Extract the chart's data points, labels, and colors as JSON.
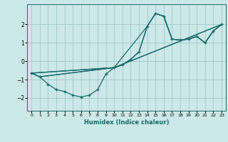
{
  "xlabel": "Humidex (Indice chaleur)",
  "xlim": [
    -0.5,
    23.5
  ],
  "ylim": [
    -2.7,
    3.1
  ],
  "xticks": [
    0,
    1,
    2,
    3,
    4,
    5,
    6,
    7,
    8,
    9,
    10,
    11,
    12,
    13,
    14,
    15,
    16,
    17,
    18,
    19,
    20,
    21,
    22,
    23
  ],
  "yticks": [
    -2,
    -1,
    0,
    1,
    2
  ],
  "bg_color": "#cce8e8",
  "line_color": "#1a6b6b",
  "grid_color": "#a0c8c8",
  "curves": [
    {
      "x": [
        0,
        1,
        2,
        3,
        4,
        5,
        6,
        7,
        8,
        9,
        10,
        11,
        12,
        13,
        14,
        15,
        16,
        17,
        18,
        19,
        20,
        21,
        22,
        23
      ],
      "y": [
        -0.65,
        -0.85,
        -1.25,
        -1.55,
        -1.65,
        -1.85,
        -1.95,
        -1.85,
        -1.55,
        -0.7,
        -0.35,
        -0.2,
        0.1,
        0.5,
        1.9,
        2.6,
        2.45,
        1.2,
        1.15,
        1.2,
        1.35,
        1.0,
        1.65,
        2.0
      ],
      "marker": "+",
      "ms": 3.5,
      "lw": 0.9
    },
    {
      "x": [
        0,
        1,
        10,
        23
      ],
      "y": [
        -0.65,
        -0.85,
        -0.35,
        2.0
      ],
      "marker": null,
      "ms": 0,
      "lw": 0.9
    },
    {
      "x": [
        0,
        10,
        23
      ],
      "y": [
        -0.65,
        -0.35,
        2.0
      ],
      "marker": null,
      "ms": 0,
      "lw": 0.9
    },
    {
      "x": [
        0,
        10,
        11,
        12,
        13,
        14,
        15,
        16,
        17,
        18,
        19,
        20,
        21,
        22,
        23
      ],
      "y": [
        -0.65,
        -0.35,
        -0.2,
        0.1,
        0.5,
        1.9,
        2.6,
        2.45,
        1.2,
        1.15,
        1.2,
        1.35,
        1.0,
        1.65,
        2.0
      ],
      "marker": null,
      "ms": 0,
      "lw": 0.9
    },
    {
      "x": [
        0,
        1,
        10,
        14,
        15,
        16,
        17,
        18,
        19,
        20,
        21,
        22,
        23
      ],
      "y": [
        -0.65,
        -0.85,
        -0.35,
        1.9,
        2.6,
        2.45,
        1.2,
        1.15,
        1.2,
        1.35,
        1.0,
        1.65,
        2.0
      ],
      "marker": null,
      "ms": 0,
      "lw": 0.9
    }
  ]
}
